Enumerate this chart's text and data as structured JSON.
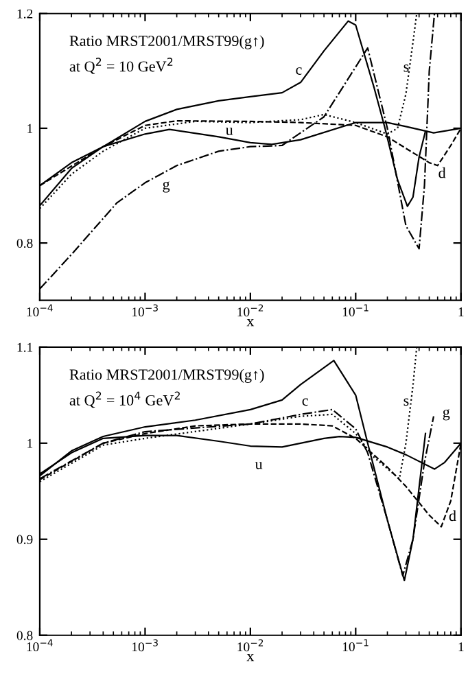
{
  "chart_data": [
    {
      "type": "line",
      "annotations": [
        "Ratio MRST2001/MRST99(g↑)",
        "at Q$^{2}$ = 10 GeV$^{2}$"
      ],
      "xlabel": "x",
      "log": "x",
      "xlim": [
        0.0001,
        1
      ],
      "ylim": [
        0.7,
        1.2
      ],
      "xticks": [
        {
          "value": 0.0001,
          "label": "10$^{−4}$"
        },
        {
          "value": 0.001,
          "label": "10$^{−3}$"
        },
        {
          "value": 0.01,
          "label": "10$^{−2}$"
        },
        {
          "value": 0.1,
          "label": "10$^{−1}$"
        },
        1
      ],
      "yticks": [
        0.8,
        1,
        1.2
      ],
      "grid": false,
      "legend": false,
      "series": [
        {
          "name": "u",
          "color": "#000000",
          "line_style": "solid",
          "x": [
            0.0001,
            0.0002,
            0.0004,
            0.001,
            0.0017,
            0.005,
            0.01,
            0.016,
            0.03,
            0.1,
            0.2,
            0.3,
            0.55,
            1
          ],
          "values": [
            0.9,
            0.94,
            0.968,
            0.99,
            0.998,
            0.985,
            0.975,
            0.972,
            0.98,
            1.01,
            1.01,
            1.003,
            0.992,
            1.0
          ]
        },
        {
          "name": "c",
          "color": "#000000",
          "line_style": "solid",
          "x": [
            0.0001,
            0.0002,
            0.0004,
            0.001,
            0.002,
            0.005,
            0.01,
            0.02,
            0.03,
            0.05,
            0.085,
            0.1,
            0.15,
            0.19,
            0.25,
            0.31,
            0.35,
            0.4,
            0.46
          ],
          "values": [
            0.865,
            0.93,
            0.968,
            1.012,
            1.033,
            1.048,
            1.055,
            1.062,
            1.08,
            1.135,
            1.187,
            1.18,
            1.07,
            1.0,
            0.91,
            0.864,
            0.88,
            0.95,
            0.995
          ]
        },
        {
          "name": "d",
          "color": "#000000",
          "line_style": "dashed",
          "x": [
            0.0001,
            0.0004,
            0.001,
            0.002,
            0.01,
            0.03,
            0.1,
            0.2,
            0.3,
            0.5,
            0.6,
            0.8,
            1
          ],
          "values": [
            0.9,
            0.968,
            1.005,
            1.013,
            1.012,
            1.01,
            1.005,
            0.985,
            0.965,
            0.94,
            0.935,
            0.97,
            1.0
          ]
        },
        {
          "name": "s",
          "color": "#000000",
          "line_style": "dotted",
          "x": [
            0.0001,
            0.0002,
            0.0004,
            0.001,
            0.003,
            0.01,
            0.03,
            0.05,
            0.1,
            0.2,
            0.25,
            0.3,
            0.35,
            0.38
          ],
          "values": [
            0.86,
            0.92,
            0.96,
            1.0,
            1.012,
            1.01,
            1.015,
            1.024,
            1.01,
            0.99,
            1.0,
            1.06,
            1.15,
            1.2
          ]
        },
        {
          "name": "g",
          "color": "#000000",
          "line_style": "dashdot",
          "x": [
            0.0001,
            0.0002,
            0.00054,
            0.001,
            0.002,
            0.005,
            0.01,
            0.02,
            0.05,
            0.13,
            0.2,
            0.3,
            0.4,
            0.45,
            0.5,
            0.56
          ],
          "values": [
            0.72,
            0.78,
            0.87,
            0.905,
            0.935,
            0.96,
            0.968,
            0.97,
            1.02,
            1.14,
            1.0,
            0.83,
            0.79,
            0.9,
            1.1,
            1.2
          ]
        }
      ]
    },
    {
      "type": "line",
      "annotations": [
        "Ratio MRST2001/MRST99(g↑)",
        "at Q$^{2}$ = 10$^{4}$ GeV$^{2}$"
      ],
      "xlabel": "x",
      "log": "x",
      "xlim": [
        0.0001,
        1
      ],
      "ylim": [
        0.8,
        1.1
      ],
      "xticks": [
        {
          "value": 0.0001,
          "label": "10$^{−4}$"
        },
        {
          "value": 0.001,
          "label": "10$^{−3}$"
        },
        {
          "value": 0.01,
          "label": "10$^{−2}$"
        },
        {
          "value": 0.1,
          "label": "10$^{−1}$"
        },
        1
      ],
      "yticks": [
        0.8,
        0.9,
        1,
        1.1
      ],
      "grid": false,
      "legend": false,
      "series": [
        {
          "name": "u",
          "color": "#000000",
          "line_style": "solid",
          "x": [
            0.0001,
            0.0002,
            0.0004,
            0.001,
            0.002,
            0.005,
            0.01,
            0.02,
            0.05,
            0.07,
            0.1,
            0.2,
            0.3,
            0.56,
            0.7,
            1
          ],
          "values": [
            0.968,
            0.99,
            1.005,
            1.008,
            1.008,
            1.002,
            0.997,
            0.996,
            1.005,
            1.007,
            1.006,
            0.996,
            0.988,
            0.973,
            0.98,
            1.0
          ]
        },
        {
          "name": "c",
          "color": "#000000",
          "line_style": "solid",
          "x": [
            0.0001,
            0.0002,
            0.0004,
            0.001,
            0.003,
            0.01,
            0.02,
            0.03,
            0.062,
            0.1,
            0.13,
            0.2,
            0.29,
            0.35,
            0.46
          ],
          "values": [
            0.966,
            0.992,
            1.007,
            1.017,
            1.024,
            1.035,
            1.045,
            1.061,
            1.086,
            1.05,
            1.0,
            0.92,
            0.857,
            0.9,
            1.01
          ]
        },
        {
          "name": "d",
          "color": "#000000",
          "line_style": "dashed",
          "x": [
            0.0001,
            0.0004,
            0.001,
            0.003,
            0.01,
            0.03,
            0.06,
            0.1,
            0.2,
            0.3,
            0.5,
            0.65,
            0.8,
            1
          ],
          "values": [
            0.962,
            1.0,
            1.01,
            1.018,
            1.02,
            1.02,
            1.018,
            1.005,
            0.975,
            0.955,
            0.925,
            0.913,
            0.94,
            1.0
          ]
        },
        {
          "name": "s",
          "color": "#000000",
          "line_style": "dotted",
          "x": [
            0.0001,
            0.0004,
            0.001,
            0.01,
            0.03,
            0.06,
            0.1,
            0.15,
            0.26,
            0.3,
            0.35,
            0.38
          ],
          "values": [
            0.96,
            0.998,
            1.005,
            1.02,
            1.028,
            1.03,
            1.01,
            0.985,
            0.963,
            1.0,
            1.06,
            1.1
          ]
        },
        {
          "name": "g",
          "color": "#000000",
          "line_style": "dashdot",
          "x": [
            0.0001,
            0.0004,
            0.001,
            0.01,
            0.03,
            0.06,
            0.1,
            0.13,
            0.2,
            0.28,
            0.35,
            0.45,
            0.55
          ],
          "values": [
            0.963,
            1.0,
            1.012,
            1.02,
            1.03,
            1.035,
            1.015,
            0.99,
            0.92,
            0.862,
            0.9,
            0.98,
            1.028
          ]
        }
      ]
    }
  ]
}
